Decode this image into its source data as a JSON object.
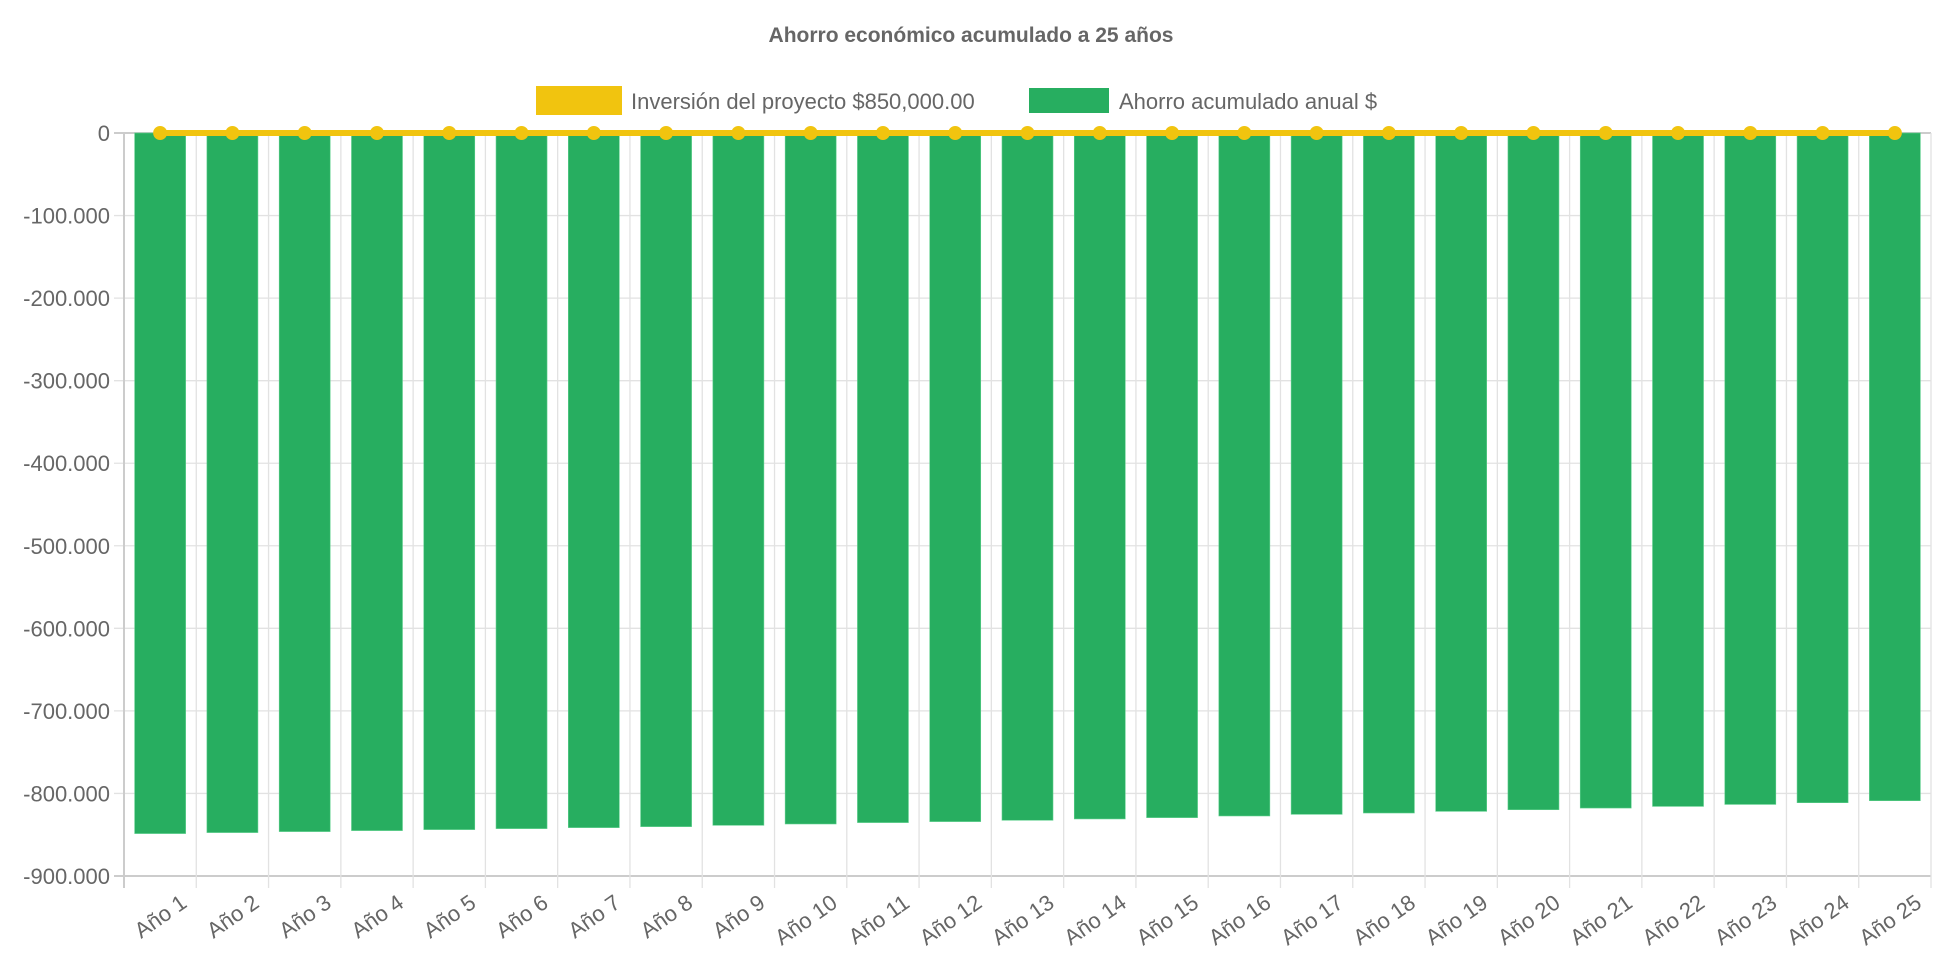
{
  "chart_data": {
    "type": "bar",
    "title": "Ahorro económico acumulado a 25 años",
    "xlabel": "",
    "ylabel": "",
    "ylim": [
      -900000,
      0
    ],
    "yticks": [
      0,
      -100000,
      -200000,
      -300000,
      -400000,
      -500000,
      -600000,
      -700000,
      -800000,
      -900000
    ],
    "ytick_labels": [
      "0",
      "-100.000",
      "-200.000",
      "-300.000",
      "-400.000",
      "-500.000",
      "-600.000",
      "-700.000",
      "-800.000",
      "-900.000"
    ],
    "grid": true,
    "legend_placement": "top-center",
    "categories": [
      "Año 1",
      "Año 2",
      "Año 3",
      "Año 4",
      "Año 5",
      "Año 6",
      "Año 7",
      "Año 8",
      "Año 9",
      "Año 10",
      "Año 11",
      "Año 12",
      "Año 13",
      "Año 14",
      "Año 15",
      "Año 16",
      "Año 17",
      "Año 18",
      "Año 19",
      "Año 20",
      "Año 21",
      "Año 22",
      "Año 23",
      "Año 24",
      "Año 25"
    ],
    "series": [
      {
        "name": "Inversión del proyecto $850,000.00",
        "type": "line",
        "color": "#F1C40F",
        "values": [
          0,
          0,
          0,
          0,
          0,
          0,
          0,
          0,
          0,
          0,
          0,
          0,
          0,
          0,
          0,
          0,
          0,
          0,
          0,
          0,
          0,
          0,
          0,
          0,
          0
        ]
      },
      {
        "name": "Ahorro acumulado anual $",
        "type": "bar",
        "color": "#27AE60",
        "values": [
          -848600,
          -847400,
          -846200,
          -845000,
          -843800,
          -842600,
          -841400,
          -840200,
          -838600,
          -837000,
          -835300,
          -834100,
          -832500,
          -830900,
          -829300,
          -827300,
          -825300,
          -823700,
          -821700,
          -819700,
          -817700,
          -815700,
          -813300,
          -811200,
          -808800
        ]
      }
    ]
  }
}
